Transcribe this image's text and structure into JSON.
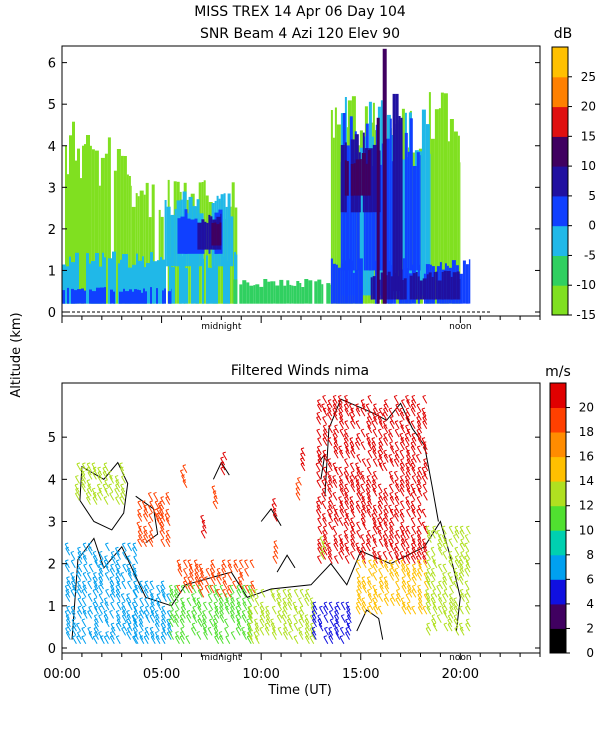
{
  "chart_data": [
    {
      "type": "heatmap",
      "title_line1": "MISS TREX    14 Apr 06 Day 104",
      "title_line2": "SNR Beam 4 Azi 120 Elev 90",
      "ylabel": "Altitude (km)",
      "ylim": [
        0,
        6.4
      ],
      "y_ticks": [
        0,
        1,
        2,
        3,
        4,
        5,
        6
      ],
      "x_markers": [
        {
          "label": "midnight",
          "hour": 8
        },
        {
          "label": "noon",
          "hour": 20
        }
      ],
      "colorbar": {
        "unit": "dB",
        "range": [
          -15,
          30
        ],
        "ticks": [
          -15,
          -10,
          -5,
          0,
          5,
          10,
          15,
          20,
          25
        ],
        "colors": [
          "#80e020",
          "#30d060",
          "#20b8e8",
          "#1040ff",
          "#2010a0",
          "#400060",
          "#e01010",
          "#ff8000",
          "#ffc000"
        ]
      },
      "field": [
        {
          "t0": 0.0,
          "t1": 1.5,
          "h0": 0.2,
          "h1": 4.7,
          "db": -15
        },
        {
          "t0": 1.5,
          "t1": 3.5,
          "h0": 0.2,
          "h1": 4.4,
          "db": -15
        },
        {
          "t0": 3.5,
          "t1": 8.8,
          "h0": 0.2,
          "h1": 3.2,
          "db": -12
        },
        {
          "t0": 0.0,
          "t1": 8.8,
          "h0": 0.2,
          "h1": 1.5,
          "db": -5
        },
        {
          "t0": 0.0,
          "t1": 5.5,
          "h0": 0.2,
          "h1": 0.6,
          "db": 0
        },
        {
          "t0": 5.0,
          "t1": 8.6,
          "h0": 1.1,
          "h1": 2.9,
          "db": -5
        },
        {
          "t0": 5.8,
          "t1": 8.2,
          "h0": 1.4,
          "h1": 2.5,
          "db": 0
        },
        {
          "t0": 6.8,
          "t1": 8.0,
          "h0": 1.5,
          "h1": 2.4,
          "db": 5
        },
        {
          "t0": 7.5,
          "t1": 8.0,
          "h0": 1.6,
          "h1": 2.2,
          "db": 10
        },
        {
          "t0": 8.6,
          "t1": 13.5,
          "h0": 0.2,
          "h1": 0.8,
          "db": -10
        },
        {
          "t0": 13.5,
          "t1": 20.0,
          "h0": 0.2,
          "h1": 5.3,
          "db": -12
        },
        {
          "t0": 13.8,
          "t1": 18.5,
          "h0": 0.4,
          "h1": 5.2,
          "db": -5
        },
        {
          "t0": 14.0,
          "t1": 18.0,
          "h0": 1.0,
          "h1": 4.8,
          "db": 0
        },
        {
          "t0": 14.0,
          "t1": 16.0,
          "h0": 2.4,
          "h1": 4.4,
          "db": 5
        },
        {
          "t0": 14.2,
          "t1": 15.5,
          "h0": 2.8,
          "h1": 3.9,
          "db": 10
        },
        {
          "t0": 13.5,
          "t1": 20.5,
          "h0": 0.2,
          "h1": 1.3,
          "db": 0
        },
        {
          "t0": 15.5,
          "t1": 20.0,
          "h0": 0.3,
          "h1": 1.0,
          "db": 5
        },
        {
          "t0": 15.8,
          "t1": 16.3,
          "h0": 0.2,
          "h1": 6.4,
          "db": 10
        },
        {
          "t0": 16.6,
          "t1": 17.1,
          "h0": 0.5,
          "h1": 5.5,
          "db": 5
        }
      ]
    },
    {
      "type": "scatter",
      "title": "Filtered Winds nima",
      "xlabel": "Time (UT)",
      "ylabel": "Altitude (km)",
      "ylim": [
        0,
        6
      ],
      "xlim": [
        0,
        24
      ],
      "y_ticks": [
        0,
        1,
        2,
        3,
        4,
        5
      ],
      "x_ticks": [
        {
          "label": "00:00",
          "hour": 0
        },
        {
          "label": "05:00",
          "hour": 5
        },
        {
          "label": "10:00",
          "hour": 10
        },
        {
          "label": "15:00",
          "hour": 15
        },
        {
          "label": "20:00",
          "hour": 20
        }
      ],
      "x_markers": [
        {
          "label": "midnight",
          "hour": 8
        },
        {
          "label": "noon",
          "hour": 20
        }
      ],
      "colorbar": {
        "unit": "m/s",
        "range": [
          0,
          22
        ],
        "ticks": [
          0,
          2,
          4,
          6,
          8,
          10,
          12,
          14,
          16,
          18,
          20
        ],
        "colors": [
          "#000000",
          "#400060",
          "#1010e0",
          "#00a0f0",
          "#00d0b0",
          "#50e030",
          "#b0e020",
          "#ffc000",
          "#ff8c00",
          "#ff4000",
          "#e00000"
        ]
      },
      "wind_regions": [
        {
          "t0": 0.9,
          "t1": 3.2,
          "h0": 3.4,
          "h1": 4.2,
          "speed": 13
        },
        {
          "t0": 0.4,
          "t1": 3.8,
          "h0": 0.1,
          "h1": 2.4,
          "speed": 7
        },
        {
          "t0": 3.8,
          "t1": 5.6,
          "h0": 0.1,
          "h1": 1.5,
          "speed": 6
        },
        {
          "t0": 4.0,
          "t1": 5.5,
          "h0": 2.4,
          "h1": 3.6,
          "speed": 19
        },
        {
          "t0": 5.6,
          "t1": 9.6,
          "h0": 0.1,
          "h1": 1.4,
          "speed": 11
        },
        {
          "t0": 6.0,
          "t1": 9.8,
          "h0": 1.2,
          "h1": 2.0,
          "speed": 19
        },
        {
          "t0": 9.6,
          "t1": 12.8,
          "h0": 0.1,
          "h1": 1.2,
          "speed": 12
        },
        {
          "t0": 12.8,
          "t1": 14.6,
          "h0": 0.1,
          "h1": 0.9,
          "speed": 4
        },
        {
          "t0": 13.0,
          "t1": 18.5,
          "h0": 2.0,
          "h1": 5.8,
          "speed": 21
        },
        {
          "t0": 15.0,
          "t1": 18.5,
          "h0": 0.8,
          "h1": 2.0,
          "speed": 15
        },
        {
          "t0": 18.5,
          "t1": 20.5,
          "h0": 0.3,
          "h1": 2.8,
          "speed": 13
        }
      ],
      "scattered_barbs": [
        {
          "hour": 5.0,
          "alt": 2.9,
          "speed": 19
        },
        {
          "hour": 6.2,
          "alt": 3.8,
          "speed": 19
        },
        {
          "hour": 7.2,
          "alt": 2.6,
          "speed": 20
        },
        {
          "hour": 7.8,
          "alt": 3.3,
          "speed": 19
        },
        {
          "hour": 8.2,
          "alt": 4.1,
          "speed": 21
        },
        {
          "hour": 10.8,
          "alt": 3.0,
          "speed": 20
        },
        {
          "hour": 12.0,
          "alt": 3.5,
          "speed": 18
        },
        {
          "hour": 12.2,
          "alt": 4.2,
          "speed": 20
        },
        {
          "hour": 10.8,
          "alt": 2.0,
          "speed": 19
        },
        {
          "hour": 13.2,
          "alt": 2.1,
          "speed": 12
        }
      ]
    }
  ],
  "time_axis": {
    "hour_min": 0,
    "hour_max": 24
  }
}
